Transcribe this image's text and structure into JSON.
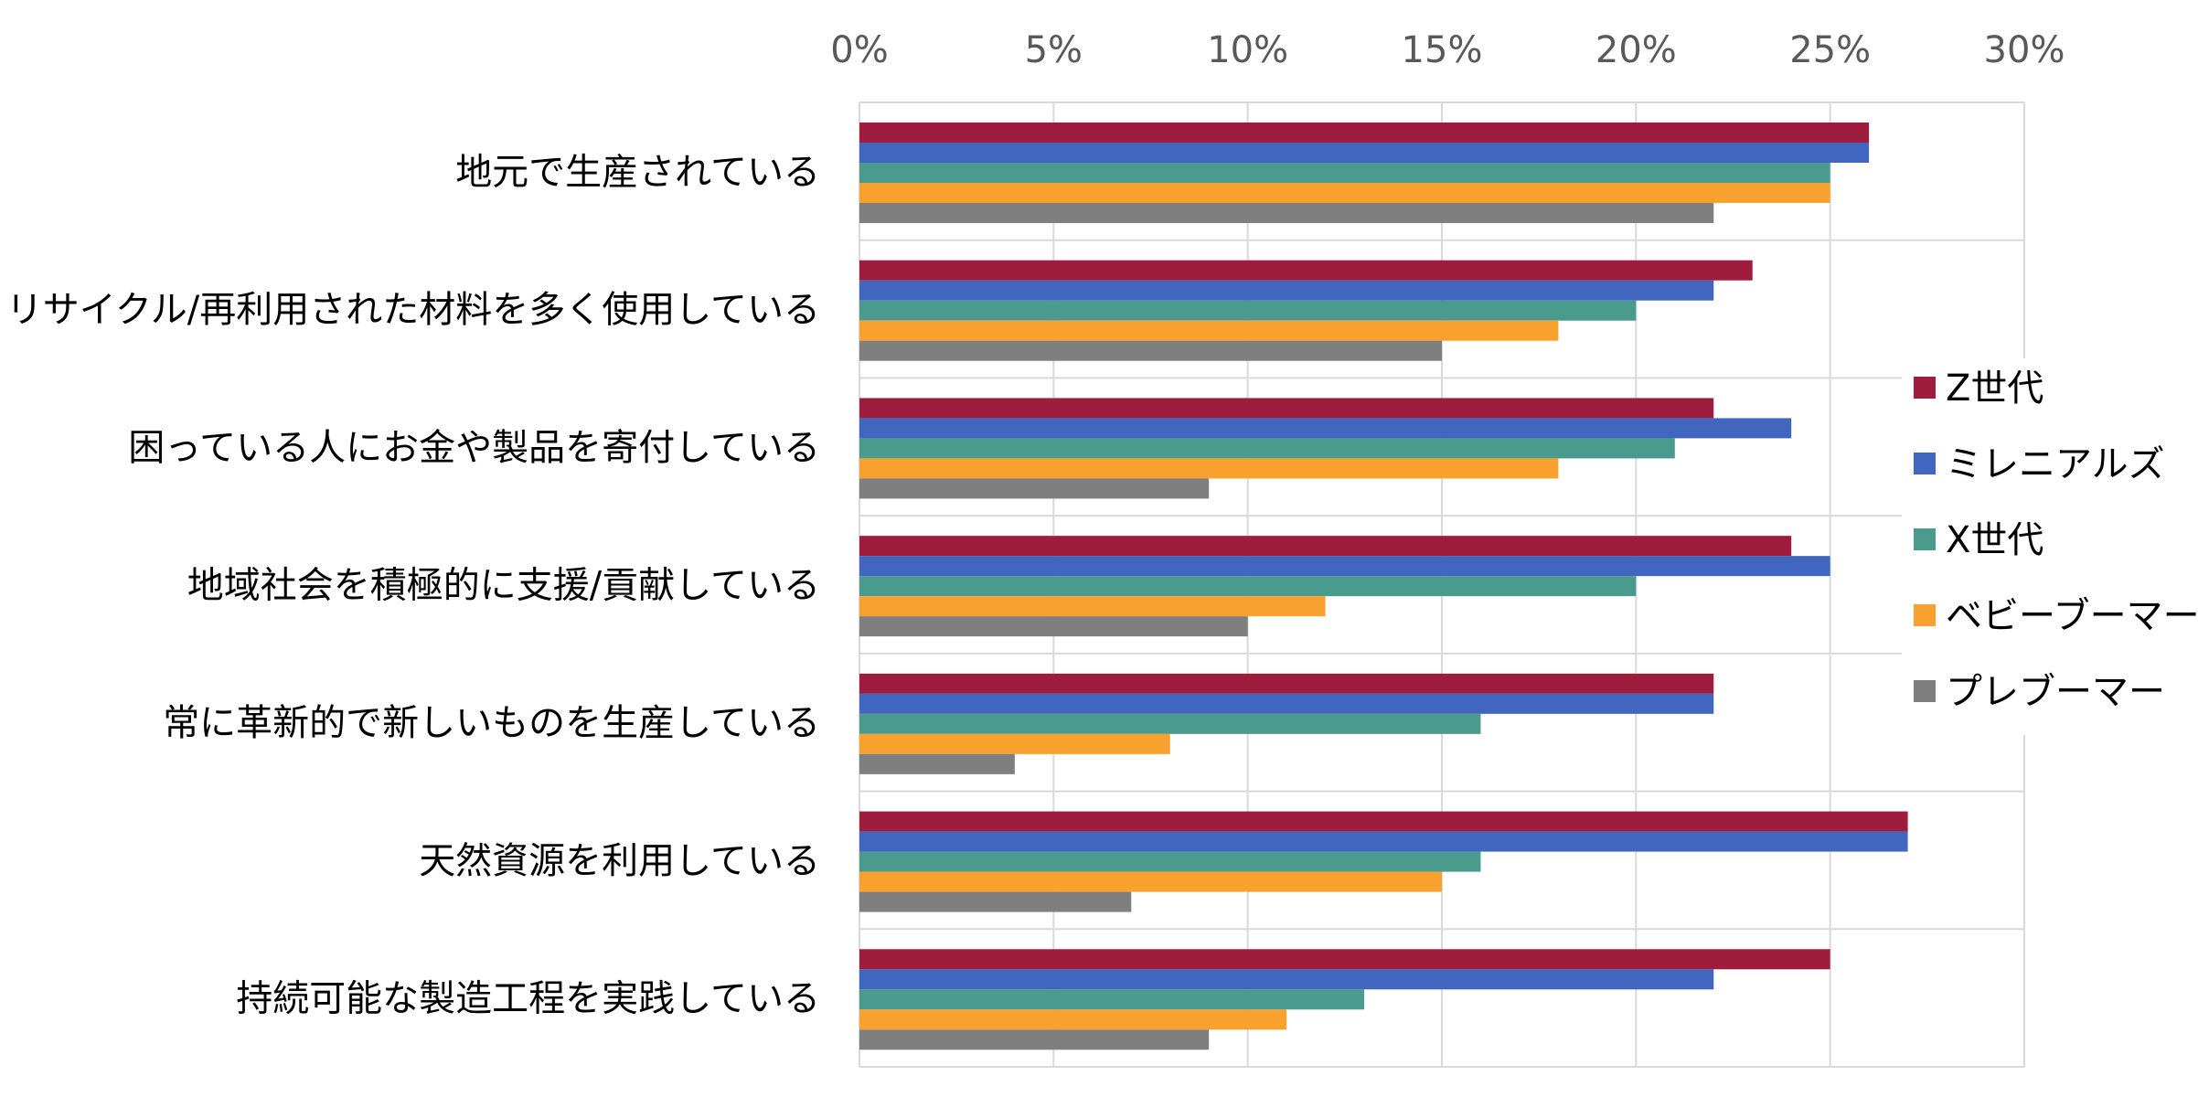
{
  "chart_data": {
    "type": "bar",
    "orientation": "horizontal",
    "categories": [
      "地元で生産されている",
      "リサイクル/再利用された材料を多く使用している",
      "困っている人にお金や製品を寄付している",
      "地域社会を積極的に支援/貢献している",
      "常に革新的で新しいものを生産している",
      "天然資源を利用している",
      "持続可能な製造工程を実践している"
    ],
    "series": [
      {
        "name": "Z世代",
        "color": "#9E1C3D",
        "values": [
          26,
          23,
          22,
          24,
          22,
          27,
          25
        ]
      },
      {
        "name": "ミレニアルズ",
        "color": "#4166C0",
        "values": [
          26,
          22,
          24,
          25,
          22,
          27,
          22
        ]
      },
      {
        "name": "X世代",
        "color": "#4A9A8E",
        "values": [
          25,
          20,
          21,
          20,
          16,
          16,
          13
        ]
      },
      {
        "name": "ベビーブーマー",
        "color": "#F9A12F",
        "values": [
          25,
          18,
          18,
          12,
          8,
          15,
          11
        ]
      },
      {
        "name": "プレブーマー",
        "color": "#7F7F7F",
        "values": [
          22,
          15,
          9,
          10,
          4,
          7,
          9
        ]
      }
    ],
    "xlim": [
      0,
      30
    ],
    "ticks": [
      "0%",
      "5%",
      "10%",
      "15%",
      "20%",
      "25%",
      "30%"
    ],
    "tick_values": [
      0,
      5,
      10,
      15,
      20,
      25,
      30
    ],
    "axis_position": "top",
    "grid": true,
    "legend_position": "right",
    "title": "",
    "xlabel": "",
    "ylabel": ""
  }
}
